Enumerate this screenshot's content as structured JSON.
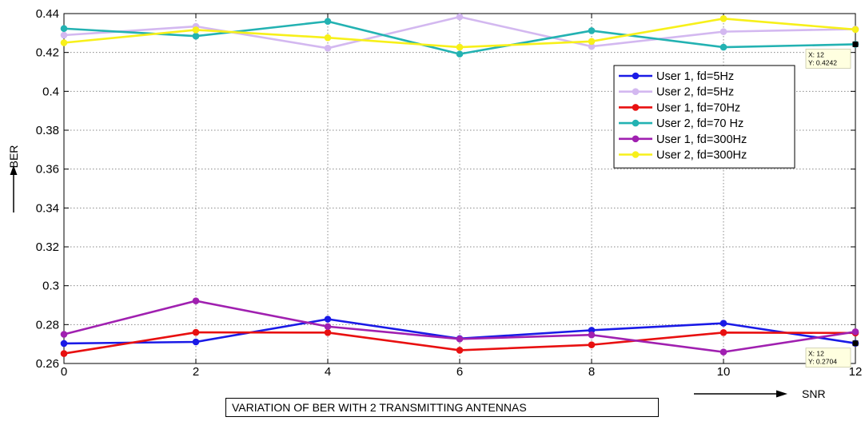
{
  "chart_data": {
    "type": "line",
    "title": "",
    "caption": "VARIATION OF BER WITH 2 TRANSMITTING ANTENNAS",
    "xlabel": "SNR",
    "ylabel": "BER",
    "xlim": [
      0,
      12
    ],
    "ylim": [
      0.26,
      0.44
    ],
    "xticks": [
      0,
      2,
      4,
      6,
      8,
      10,
      12
    ],
    "yticks": [
      0.26,
      0.28,
      0.3,
      0.32,
      0.34,
      0.36,
      0.38,
      0.4,
      0.42,
      0.44
    ],
    "ytick_labels": [
      "0.26",
      "0.28",
      "0.3",
      "0.32",
      "0.34",
      "0.36",
      "0.38",
      "0.4",
      "0.42",
      "0.44"
    ],
    "grid": true,
    "legend_position": "top-right",
    "x": [
      0,
      2,
      4,
      6,
      8,
      10,
      12
    ],
    "series": [
      {
        "name": "User 1, fd=5Hz",
        "color": "#1a1ae6",
        "values": [
          0.2703,
          0.2711,
          0.2828,
          0.2728,
          0.2771,
          0.2807,
          0.2704
        ]
      },
      {
        "name": "User 2, fd=5Hz",
        "color": "#d3b8f0",
        "values": [
          0.4289,
          0.4334,
          0.4222,
          0.4383,
          0.4231,
          0.4307,
          0.432
        ]
      },
      {
        "name": "User 1, fd=70Hz",
        "color": "#e81010",
        "values": [
          0.2651,
          0.276,
          0.2759,
          0.2668,
          0.2696,
          0.2759,
          0.2757
        ]
      },
      {
        "name": "User 2, fd=70 Hz",
        "color": "#23b2b2",
        "values": [
          0.4323,
          0.4284,
          0.436,
          0.4192,
          0.4312,
          0.4227,
          0.4242
        ]
      },
      {
        "name": "User 1, fd=300Hz",
        "color": "#a020b0",
        "values": [
          0.275,
          0.2922,
          0.279,
          0.2726,
          0.2747,
          0.2659,
          0.2763
        ]
      },
      {
        "name": "User 2, fd=300Hz",
        "color": "#f7f01a",
        "values": [
          0.425,
          0.4316,
          0.4276,
          0.4227,
          0.4257,
          0.4374,
          0.4318
        ]
      }
    ],
    "annotations": [
      {
        "x_label": "X: 12",
        "y_label": "Y: 0.4242",
        "x": 12,
        "y": 0.4242
      },
      {
        "x_label": "X: 12",
        "y_label": "Y: 0.2704",
        "x": 12,
        "y": 0.2704
      }
    ]
  }
}
